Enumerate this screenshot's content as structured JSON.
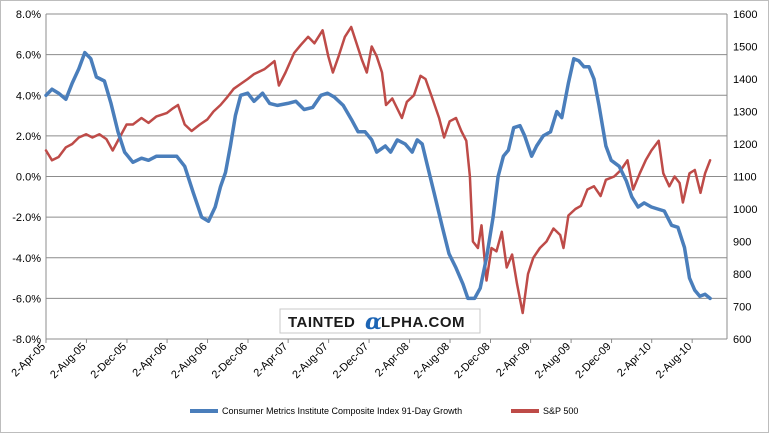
{
  "colors": {
    "cmi": "#4a7ebb",
    "sp": "#be4b48"
  },
  "watermark": {
    "prefix": "TAINTED",
    "alpha": "α",
    "suffix": "LPHA.COM"
  },
  "chart_data": {
    "type": "line",
    "y_left_ticks": [
      "8.0%",
      "6.0%",
      "4.0%",
      "2.0%",
      "0.0%",
      "-2.0%",
      "-4.0%",
      "-6.0%",
      "-8.0%"
    ],
    "y_right_ticks": [
      "1600",
      "1500",
      "1400",
      "1300",
      "1200",
      "1100",
      "1000",
      "900",
      "800",
      "700",
      "600"
    ],
    "y_left_range": [
      -8,
      8
    ],
    "y_right_range": [
      600,
      1600
    ],
    "x_range": [
      "2005-04-02",
      "2010-11-15"
    ],
    "x_ticks": [
      "2-Apr-05",
      "2-Aug-05",
      "2-Dec-05",
      "2-Apr-06",
      "2-Aug-06",
      "2-Dec-06",
      "2-Apr-07",
      "2-Aug-07",
      "2-Dec-07",
      "2-Apr-08",
      "2-Aug-08",
      "2-Dec-08",
      "2-Apr-09",
      "2-Aug-09",
      "2-Dec-09",
      "2-Apr-10",
      "2-Aug-10"
    ],
    "grid": true,
    "legend_position": "bottom",
    "series": [
      {
        "name": "Consumer Metrics Institute Composite Index 91-Day Growth",
        "axis": "left",
        "color": "#4a7ebb",
        "points": [
          [
            "2005-04-02",
            4.0
          ],
          [
            "2005-04-20",
            4.3
          ],
          [
            "2005-05-10",
            4.1
          ],
          [
            "2005-06-01",
            3.8
          ],
          [
            "2005-06-20",
            4.6
          ],
          [
            "2005-07-10",
            5.3
          ],
          [
            "2005-07-28",
            6.1
          ],
          [
            "2005-08-15",
            5.8
          ],
          [
            "2005-09-01",
            4.9
          ],
          [
            "2005-09-25",
            4.7
          ],
          [
            "2005-10-15",
            3.6
          ],
          [
            "2005-11-05",
            2.2
          ],
          [
            "2005-11-25",
            1.2
          ],
          [
            "2005-12-20",
            0.7
          ],
          [
            "2006-01-15",
            0.9
          ],
          [
            "2006-02-05",
            0.8
          ],
          [
            "2006-03-01",
            1.0
          ],
          [
            "2006-04-01",
            1.0
          ],
          [
            "2006-05-01",
            1.0
          ],
          [
            "2006-05-25",
            0.5
          ],
          [
            "2006-06-20",
            -0.8
          ],
          [
            "2006-07-15",
            -2.0
          ],
          [
            "2006-08-05",
            -2.2
          ],
          [
            "2006-08-25",
            -1.5
          ],
          [
            "2006-09-10",
            -0.5
          ],
          [
            "2006-09-25",
            0.2
          ],
          [
            "2006-10-10",
            1.5
          ],
          [
            "2006-10-25",
            3.0
          ],
          [
            "2006-11-10",
            4.0
          ],
          [
            "2006-12-01",
            4.1
          ],
          [
            "2006-12-20",
            3.7
          ],
          [
            "2007-01-15",
            4.1
          ],
          [
            "2007-02-05",
            3.6
          ],
          [
            "2007-03-01",
            3.5
          ],
          [
            "2007-04-01",
            3.6
          ],
          [
            "2007-04-25",
            3.7
          ],
          [
            "2007-05-20",
            3.3
          ],
          [
            "2007-06-15",
            3.4
          ],
          [
            "2007-07-10",
            4.0
          ],
          [
            "2007-07-30",
            4.1
          ],
          [
            "2007-08-20",
            3.9
          ],
          [
            "2007-09-15",
            3.5
          ],
          [
            "2007-10-10",
            2.8
          ],
          [
            "2007-10-30",
            2.2
          ],
          [
            "2007-11-20",
            2.2
          ],
          [
            "2007-12-10",
            1.8
          ],
          [
            "2007-12-25",
            1.2
          ],
          [
            "2008-01-20",
            1.5
          ],
          [
            "2008-02-05",
            1.2
          ],
          [
            "2008-02-25",
            1.8
          ],
          [
            "2008-03-20",
            1.6
          ],
          [
            "2008-04-10",
            1.2
          ],
          [
            "2008-04-25",
            1.8
          ],
          [
            "2008-05-10",
            1.6
          ],
          [
            "2008-05-25",
            0.6
          ],
          [
            "2008-06-15",
            -0.8
          ],
          [
            "2008-07-10",
            -2.5
          ],
          [
            "2008-07-30",
            -3.8
          ],
          [
            "2008-08-20",
            -4.5
          ],
          [
            "2008-09-10",
            -5.3
          ],
          [
            "2008-09-25",
            -6.0
          ],
          [
            "2008-10-15",
            -6.0
          ],
          [
            "2008-11-01",
            -5.5
          ],
          [
            "2008-11-20",
            -4.0
          ],
          [
            "2008-12-10",
            -2.0
          ],
          [
            "2008-12-25",
            0.0
          ],
          [
            "2009-01-10",
            1.0
          ],
          [
            "2009-01-25",
            1.3
          ],
          [
            "2009-02-10",
            2.4
          ],
          [
            "2009-03-01",
            2.5
          ],
          [
            "2009-03-15",
            2.0
          ],
          [
            "2009-04-05",
            1.0
          ],
          [
            "2009-04-20",
            1.5
          ],
          [
            "2009-05-10",
            2.0
          ],
          [
            "2009-06-01",
            2.2
          ],
          [
            "2009-06-20",
            3.2
          ],
          [
            "2009-07-05",
            2.9
          ],
          [
            "2009-07-25",
            4.6
          ],
          [
            "2009-08-10",
            5.8
          ],
          [
            "2009-08-25",
            5.7
          ],
          [
            "2009-09-10",
            5.4
          ],
          [
            "2009-09-25",
            5.4
          ],
          [
            "2009-10-10",
            4.8
          ],
          [
            "2009-10-25",
            3.5
          ],
          [
            "2009-11-15",
            1.5
          ],
          [
            "2009-12-01",
            0.8
          ],
          [
            "2009-12-25",
            0.5
          ],
          [
            "2010-01-15",
            -0.2
          ],
          [
            "2010-02-01",
            -1.0
          ],
          [
            "2010-02-20",
            -1.5
          ],
          [
            "2010-03-10",
            -1.3
          ],
          [
            "2010-04-01",
            -1.5
          ],
          [
            "2010-04-20",
            -1.6
          ],
          [
            "2010-05-10",
            -1.7
          ],
          [
            "2010-06-01",
            -2.4
          ],
          [
            "2010-06-20",
            -2.5
          ],
          [
            "2010-07-10",
            -3.5
          ],
          [
            "2010-07-25",
            -5.0
          ],
          [
            "2010-08-10",
            -5.6
          ],
          [
            "2010-08-25",
            -5.9
          ],
          [
            "2010-09-10",
            -5.8
          ],
          [
            "2010-09-25",
            -6.0
          ]
        ]
      },
      {
        "name": "S&P 500",
        "axis": "right",
        "color": "#be4b48",
        "points": [
          [
            "2005-04-02",
            1180
          ],
          [
            "2005-04-20",
            1150
          ],
          [
            "2005-05-10",
            1160
          ],
          [
            "2005-06-01",
            1190
          ],
          [
            "2005-06-20",
            1200
          ],
          [
            "2005-07-10",
            1220
          ],
          [
            "2005-08-01",
            1230
          ],
          [
            "2005-08-20",
            1220
          ],
          [
            "2005-09-10",
            1230
          ],
          [
            "2005-10-01",
            1215
          ],
          [
            "2005-10-20",
            1180
          ],
          [
            "2005-11-10",
            1220
          ],
          [
            "2005-12-01",
            1260
          ],
          [
            "2005-12-20",
            1260
          ],
          [
            "2006-01-15",
            1280
          ],
          [
            "2006-02-05",
            1265
          ],
          [
            "2006-03-01",
            1285
          ],
          [
            "2006-04-01",
            1295
          ],
          [
            "2006-04-20",
            1310
          ],
          [
            "2006-05-05",
            1320
          ],
          [
            "2006-05-25",
            1260
          ],
          [
            "2006-06-15",
            1240
          ],
          [
            "2006-07-10",
            1260
          ],
          [
            "2006-08-01",
            1275
          ],
          [
            "2006-08-20",
            1300
          ],
          [
            "2006-09-10",
            1320
          ],
          [
            "2006-10-01",
            1345
          ],
          [
            "2006-10-20",
            1370
          ],
          [
            "2006-11-10",
            1385
          ],
          [
            "2006-12-01",
            1400
          ],
          [
            "2006-12-20",
            1415
          ],
          [
            "2007-01-20",
            1430
          ],
          [
            "2007-02-20",
            1455
          ],
          [
            "2007-03-05",
            1380
          ],
          [
            "2007-03-25",
            1420
          ],
          [
            "2007-04-20",
            1480
          ],
          [
            "2007-05-10",
            1505
          ],
          [
            "2007-06-01",
            1530
          ],
          [
            "2007-06-20",
            1510
          ],
          [
            "2007-07-15",
            1550
          ],
          [
            "2007-08-01",
            1470
          ],
          [
            "2007-08-15",
            1420
          ],
          [
            "2007-09-01",
            1470
          ],
          [
            "2007-09-20",
            1530
          ],
          [
            "2007-10-09",
            1560
          ],
          [
            "2007-10-25",
            1510
          ],
          [
            "2007-11-10",
            1460
          ],
          [
            "2007-11-25",
            1420
          ],
          [
            "2007-12-10",
            1500
          ],
          [
            "2007-12-25",
            1470
          ],
          [
            "2008-01-10",
            1420
          ],
          [
            "2008-01-22",
            1320
          ],
          [
            "2008-02-10",
            1340
          ],
          [
            "2008-03-10",
            1280
          ],
          [
            "2008-03-25",
            1330
          ],
          [
            "2008-04-15",
            1350
          ],
          [
            "2008-05-05",
            1410
          ],
          [
            "2008-05-20",
            1400
          ],
          [
            "2008-06-10",
            1340
          ],
          [
            "2008-06-30",
            1280
          ],
          [
            "2008-07-15",
            1220
          ],
          [
            "2008-08-01",
            1270
          ],
          [
            "2008-08-20",
            1280
          ],
          [
            "2008-09-05",
            1240
          ],
          [
            "2008-09-20",
            1210
          ],
          [
            "2008-10-01",
            1100
          ],
          [
            "2008-10-10",
            900
          ],
          [
            "2008-10-25",
            880
          ],
          [
            "2008-11-05",
            950
          ],
          [
            "2008-11-20",
            780
          ],
          [
            "2008-12-05",
            880
          ],
          [
            "2008-12-20",
            870
          ],
          [
            "2009-01-05",
            930
          ],
          [
            "2009-01-20",
            820
          ],
          [
            "2009-02-05",
            860
          ],
          [
            "2009-02-20",
            770
          ],
          [
            "2009-03-09",
            680
          ],
          [
            "2009-03-25",
            800
          ],
          [
            "2009-04-10",
            850
          ],
          [
            "2009-04-30",
            880
          ],
          [
            "2009-05-20",
            900
          ],
          [
            "2009-06-10",
            940
          ],
          [
            "2009-06-30",
            920
          ],
          [
            "2009-07-10",
            880
          ],
          [
            "2009-07-25",
            980
          ],
          [
            "2009-08-15",
            1000
          ],
          [
            "2009-09-01",
            1010
          ],
          [
            "2009-09-20",
            1060
          ],
          [
            "2009-10-10",
            1070
          ],
          [
            "2009-10-30",
            1040
          ],
          [
            "2009-11-15",
            1090
          ],
          [
            "2009-12-10",
            1100
          ],
          [
            "2009-12-30",
            1120
          ],
          [
            "2010-01-19",
            1150
          ],
          [
            "2010-02-05",
            1060
          ],
          [
            "2010-02-25",
            1110
          ],
          [
            "2010-03-15",
            1150
          ],
          [
            "2010-04-01",
            1180
          ],
          [
            "2010-04-23",
            1210
          ],
          [
            "2010-05-07",
            1110
          ],
          [
            "2010-05-25",
            1070
          ],
          [
            "2010-06-10",
            1100
          ],
          [
            "2010-06-25",
            1080
          ],
          [
            "2010-07-05",
            1020
          ],
          [
            "2010-07-25",
            1110
          ],
          [
            "2010-08-10",
            1120
          ],
          [
            "2010-08-27",
            1050
          ],
          [
            "2010-09-10",
            1110
          ],
          [
            "2010-09-25",
            1150
          ]
        ]
      }
    ]
  }
}
